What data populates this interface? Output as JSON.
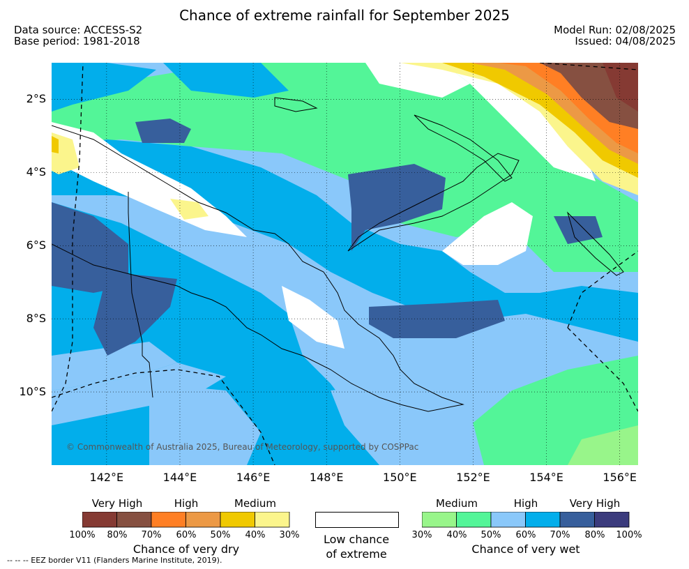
{
  "header": {
    "title": "Chance of extreme rainfall for September 2025",
    "data_source": "Data source: ACCESS-S2",
    "base_period": "Base period: 1981-2018",
    "model_run": "Model Run: 02/08/2025",
    "issued": "Issued: 04/08/2025"
  },
  "map": {
    "lat_labels": [
      "2°S",
      "4°S",
      "6°S",
      "8°S",
      "10°S"
    ],
    "lat_values": [
      -2,
      -4,
      -6,
      -8,
      -10
    ],
    "lon_labels": [
      "142°E",
      "144°E",
      "146°E",
      "148°E",
      "150°E",
      "152°E",
      "154°E",
      "156°E"
    ],
    "lon_values": [
      142,
      144,
      146,
      148,
      150,
      152,
      154,
      156
    ],
    "lat_range": [
      -12,
      -1
    ],
    "lon_range": [
      140.5,
      156.5
    ],
    "copyright": "© Commonwealth of Australia 2025, Bureau of Meteorology, supported by COSPPac",
    "colors": {
      "wet_30": "#98f58a",
      "wet_40": "#53f598",
      "wet_50": "#8ac8fa",
      "wet_60": "#02aeeb",
      "wet_70": "#375f9c",
      "wet_80": "#3b3b7d",
      "dry_30": "#fbf58c",
      "dry_40": "#f0c900",
      "dry_50": "#ec9945",
      "dry_60": "#ff7f24",
      "dry_70": "#865041",
      "dry_80": "#853a33"
    }
  },
  "legend": {
    "dry": {
      "heads": [
        "Very High",
        "High",
        "Medium"
      ],
      "ticks": [
        "100%",
        "80%",
        "70%",
        "60%",
        "50%",
        "40%",
        "30%"
      ],
      "colors": [
        "#853a33",
        "#865041",
        "#ff7f24",
        "#ec9945",
        "#f0c900",
        "#fbf58c"
      ],
      "caption": "Chance of very dry"
    },
    "low": {
      "caption_line1": "Low chance",
      "caption_line2": "of extreme"
    },
    "wet": {
      "heads": [
        "Medium",
        "High",
        "Very High"
      ],
      "ticks": [
        "30%",
        "40%",
        "50%",
        "60%",
        "70%",
        "80%",
        "100%"
      ],
      "colors": [
        "#98f58a",
        "#53f598",
        "#8ac8fa",
        "#02aeeb",
        "#375f9c",
        "#3b3b7d"
      ],
      "caption": "Chance of very wet"
    }
  },
  "footer": {
    "eez": "--  --  -- EEZ border V11 (Flanders Marine Institute, 2019)."
  }
}
